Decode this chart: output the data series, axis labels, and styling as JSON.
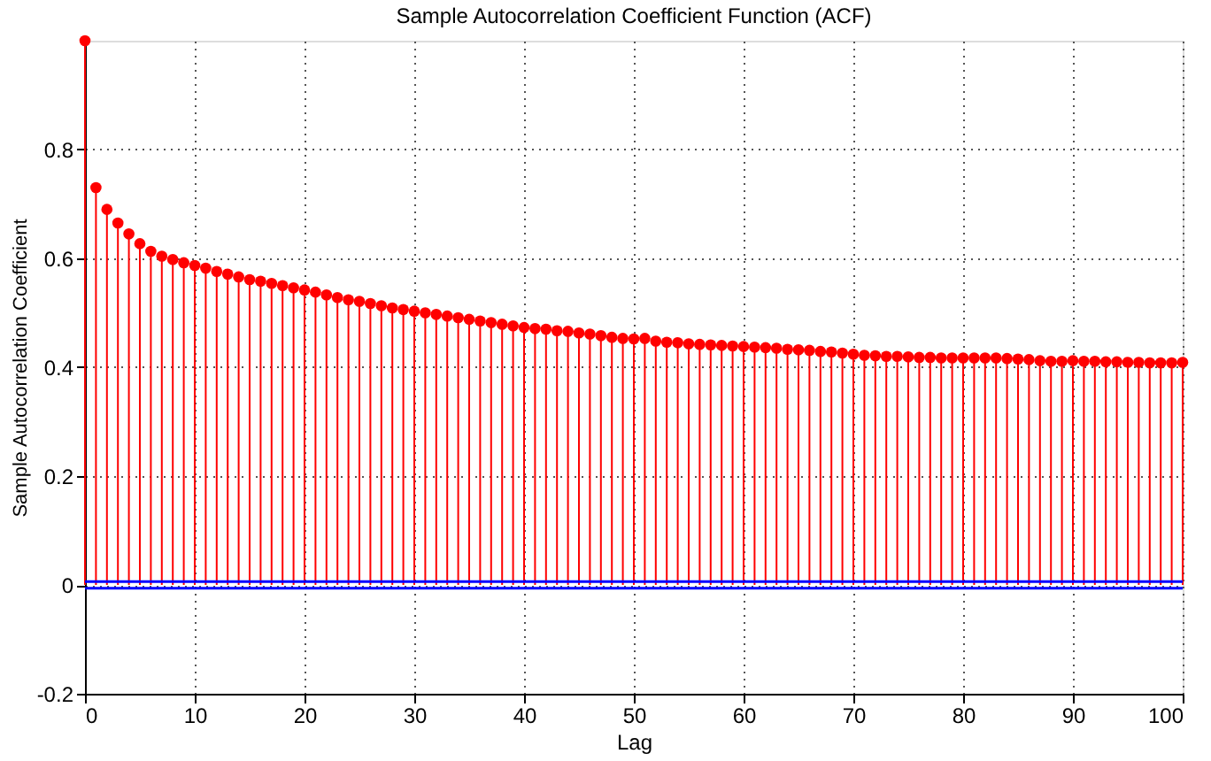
{
  "chart_data": {
    "type": "lollipop",
    "title": "Sample Autocorrelation Coefficient Function (ACF)",
    "xlabel": "Lag",
    "ylabel": "Sample Autocorrelation Coefficient",
    "x": [
      0,
      1,
      2,
      3,
      4,
      5,
      6,
      7,
      8,
      9,
      10,
      11,
      12,
      13,
      14,
      15,
      16,
      17,
      18,
      19,
      20,
      21,
      22,
      23,
      24,
      25,
      26,
      27,
      28,
      29,
      30,
      31,
      32,
      33,
      34,
      35,
      36,
      37,
      38,
      39,
      40,
      41,
      42,
      43,
      44,
      45,
      46,
      47,
      48,
      49,
      50,
      51,
      52,
      53,
      54,
      55,
      56,
      57,
      58,
      59,
      60,
      61,
      62,
      63,
      64,
      65,
      66,
      67,
      68,
      69,
      70,
      71,
      72,
      73,
      74,
      75,
      76,
      77,
      78,
      79,
      80,
      81,
      82,
      83,
      84,
      85,
      86,
      87,
      88,
      89,
      90,
      91,
      92,
      93,
      94,
      95,
      96,
      97,
      98,
      99,
      100
    ],
    "series": [
      {
        "color": "#ff0000",
        "values": [
          1.0,
          0.73,
          0.69,
          0.665,
          0.645,
          0.627,
          0.613,
          0.604,
          0.598,
          0.592,
          0.587,
          0.582,
          0.576,
          0.571,
          0.566,
          0.561,
          0.558,
          0.554,
          0.55,
          0.546,
          0.542,
          0.538,
          0.533,
          0.528,
          0.524,
          0.521,
          0.517,
          0.513,
          0.509,
          0.506,
          0.503,
          0.5,
          0.497,
          0.494,
          0.491,
          0.488,
          0.485,
          0.482,
          0.479,
          0.476,
          0.473,
          0.471,
          0.47,
          0.467,
          0.466,
          0.463,
          0.461,
          0.458,
          0.455,
          0.453,
          0.452,
          0.453,
          0.448,
          0.446,
          0.445,
          0.443,
          0.442,
          0.441,
          0.44,
          0.439,
          0.438,
          0.437,
          0.436,
          0.435,
          0.433,
          0.432,
          0.431,
          0.429,
          0.428,
          0.426,
          0.424,
          0.422,
          0.421,
          0.42,
          0.42,
          0.419,
          0.418,
          0.418,
          0.417,
          0.417,
          0.417,
          0.417,
          0.417,
          0.417,
          0.416,
          0.415,
          0.414,
          0.412,
          0.411,
          0.411,
          0.412,
          0.411,
          0.411,
          0.41,
          0.41,
          0.409,
          0.409,
          0.408,
          0.408,
          0.408,
          0.409
        ]
      }
    ],
    "xlim": [
      0,
      100
    ],
    "xticks": [
      0,
      10,
      20,
      30,
      40,
      50,
      60,
      70,
      80,
      90,
      100
    ],
    "ylim": [
      -0.2,
      1
    ],
    "yticks": [
      -0.2,
      0,
      0.2,
      0.4,
      0.6,
      0.8
    ],
    "grid": true,
    "marker": "circle",
    "ref_lines": [
      {
        "axis": "y",
        "value": 0.006,
        "color": "#0000ff"
      },
      {
        "axis": "y",
        "value": -0.006,
        "color": "#0000ff"
      }
    ]
  }
}
